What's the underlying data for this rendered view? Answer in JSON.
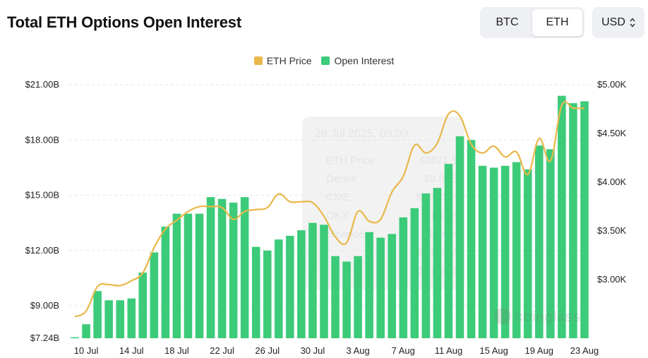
{
  "header": {
    "title": "Total ETH Options Open Interest"
  },
  "asset_toggle": {
    "btc_label": "BTC",
    "eth_label": "ETH",
    "selected": "ETH"
  },
  "currency": {
    "selected": "USD"
  },
  "colors": {
    "price_line": "#e8b84a",
    "bars": "#3ccb79",
    "grid": "#e6e6e6"
  },
  "tooltip_ghost": {
    "time": "28 Jul 2025, 09:00",
    "rows": [
      {
        "label": "ETH Price",
        "value": "$3871.5"
      },
      {
        "label": "Deribit",
        "value": "$8.82B"
      },
      {
        "label": "CME",
        "value": "$527.2M"
      },
      {
        "label": "OKX",
        "value": "$1.16B"
      },
      {
        "label": "Binance",
        "value": "$1.20M"
      },
      {
        "label": "",
        "value": "$463.2M"
      },
      {
        "label": "",
        "value": "$11.58B"
      }
    ]
  },
  "watermark": "coinglass",
  "chart_data": {
    "type": "bar",
    "legend": [
      "ETH Price",
      "Open Interest"
    ],
    "legend_position": "top-center",
    "grid": true,
    "series": [
      {
        "name": "Open Interest",
        "type": "bar",
        "axis": "left",
        "values": [
          7.24,
          8.0,
          9.8,
          9.3,
          9.3,
          9.4,
          10.8,
          11.9,
          13.3,
          14.0,
          14.0,
          14.0,
          14.9,
          14.8,
          14.6,
          14.9,
          12.2,
          12.0,
          12.6,
          12.8,
          13.1,
          13.5,
          13.4,
          11.7,
          11.4,
          11.7,
          13.0,
          12.7,
          12.9,
          13.8,
          14.3,
          15.1,
          15.4,
          16.7,
          18.2,
          18.0,
          16.6,
          16.5,
          16.6,
          16.8,
          16.4,
          17.7,
          17.5,
          20.4,
          20.0,
          20.1
        ]
      },
      {
        "name": "ETH Price",
        "type": "line",
        "axis": "right",
        "values": [
          2620,
          2680,
          2930,
          2950,
          2940,
          2990,
          3070,
          3330,
          3520,
          3610,
          3700,
          3750,
          3750,
          3740,
          3620,
          3700,
          3720,
          3740,
          3880,
          3800,
          3800,
          3790,
          3650,
          3440,
          3380,
          3700,
          3600,
          3620,
          3900,
          4060,
          4380,
          4300,
          4400,
          4700,
          4680,
          4390,
          4300,
          4370,
          4260,
          4310,
          4080,
          4450,
          4220,
          4790,
          4760,
          4760
        ]
      }
    ],
    "x_labels": [
      {
        "label": "10 Jul",
        "index": 1
      },
      {
        "label": "14 Jul",
        "index": 5
      },
      {
        "label": "18 Jul",
        "index": 9
      },
      {
        "label": "22 Jul",
        "index": 13
      },
      {
        "label": "26 Jul",
        "index": 17
      },
      {
        "label": "30 Jul",
        "index": 21
      },
      {
        "label": "3 Aug",
        "index": 25
      },
      {
        "label": "7 Aug",
        "index": 29
      },
      {
        "label": "11 Aug",
        "index": 33
      },
      {
        "label": "15 Aug",
        "index": 37
      },
      {
        "label": "19 Aug",
        "index": 41
      },
      {
        "label": "23 Aug",
        "index": 45
      }
    ],
    "y_left": {
      "min": 7.24,
      "max": 21.0,
      "ticks": [
        {
          "value": 21.0,
          "label": "$21.00B"
        },
        {
          "value": 18.0,
          "label": "$18.00B"
        },
        {
          "value": 15.0,
          "label": "$15.00B"
        },
        {
          "value": 12.0,
          "label": "$12.00B"
        },
        {
          "value": 9.0,
          "label": "$9.00B"
        },
        {
          "value": 7.24,
          "label": "$7.24B"
        }
      ]
    },
    "y_right": {
      "min": 2400,
      "max": 5000,
      "ticks": [
        {
          "value": 5000,
          "label": "$5.00K"
        },
        {
          "value": 4500,
          "label": "$4.50K"
        },
        {
          "value": 4000,
          "label": "$4.00K"
        },
        {
          "value": 3500,
          "label": "$3.50K"
        },
        {
          "value": 3000,
          "label": "$3.00K"
        }
      ]
    }
  }
}
